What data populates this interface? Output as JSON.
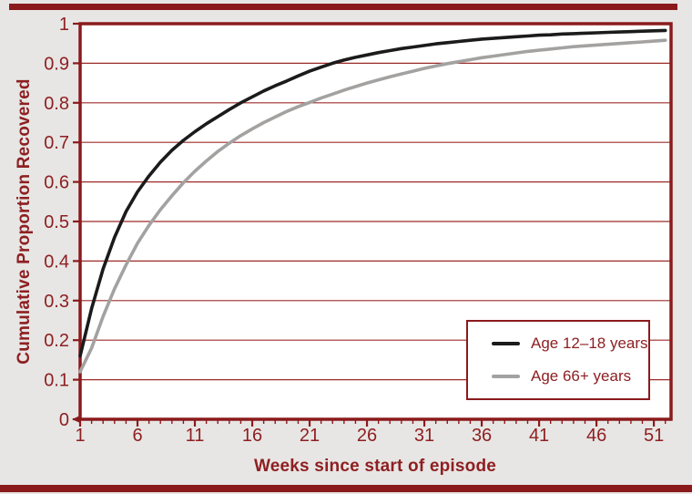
{
  "colors": {
    "maroon": "#8b1a1c",
    "text_maroon": "#8e1f22",
    "gridline": "#9c2b28",
    "page_bg": "#e7e6e4",
    "plot_bg": "#ffffff"
  },
  "chart_data": {
    "type": "line",
    "title": "",
    "xlabel": "Weeks since start of episode",
    "ylabel": "Cumulative Proportion Recovered",
    "xlim": [
      1,
      52.5
    ],
    "ylim": [
      0,
      1
    ],
    "grid": "horizontal",
    "legend_position": "lower-right",
    "x_ticks": [
      1,
      6,
      11,
      16,
      21,
      26,
      31,
      36,
      41,
      46,
      51
    ],
    "x_tick_labels": [
      "1",
      "6",
      "11",
      "16",
      "21",
      "26",
      "31",
      "36",
      "41",
      "46",
      "51"
    ],
    "x_minor_tick_step": 1,
    "y_ticks": [
      0,
      0.1,
      0.2,
      0.3,
      0.4,
      0.5,
      0.6,
      0.7,
      0.8,
      0.9,
      1
    ],
    "y_tick_labels": [
      "0",
      "0.1",
      "0.2",
      "0.3",
      "0.4",
      "0.5",
      "0.6",
      "0.7",
      "0.8",
      "0.9",
      "1"
    ],
    "x": [
      1,
      2,
      3,
      4,
      5,
      6,
      7,
      8,
      9,
      10,
      11,
      12,
      13,
      14,
      15,
      16,
      17,
      18,
      19,
      20,
      21,
      22,
      23,
      24,
      25,
      26,
      27,
      28,
      29,
      30,
      31,
      32,
      33,
      34,
      35,
      36,
      37,
      38,
      39,
      40,
      41,
      42,
      43,
      44,
      45,
      46,
      47,
      48,
      49,
      50,
      51,
      52
    ],
    "series": [
      {
        "name": "Age 12–18 years",
        "color": "#1b1b1b",
        "values": [
          0.16,
          0.28,
          0.38,
          0.46,
          0.525,
          0.575,
          0.615,
          0.65,
          0.68,
          0.705,
          0.727,
          0.747,
          0.765,
          0.783,
          0.8,
          0.815,
          0.83,
          0.843,
          0.855,
          0.868,
          0.88,
          0.89,
          0.9,
          0.908,
          0.915,
          0.921,
          0.927,
          0.932,
          0.937,
          0.941,
          0.945,
          0.949,
          0.952,
          0.955,
          0.958,
          0.961,
          0.963,
          0.965,
          0.967,
          0.969,
          0.971,
          0.972,
          0.974,
          0.975,
          0.976,
          0.977,
          0.978,
          0.979,
          0.98,
          0.981,
          0.982,
          0.983
        ]
      },
      {
        "name": "Age 66+ years",
        "color": "#a3a2a1",
        "values": [
          0.12,
          0.18,
          0.26,
          0.33,
          0.39,
          0.445,
          0.49,
          0.53,
          0.565,
          0.598,
          0.627,
          0.653,
          0.677,
          0.698,
          0.717,
          0.734,
          0.75,
          0.764,
          0.778,
          0.79,
          0.801,
          0.812,
          0.822,
          0.832,
          0.841,
          0.85,
          0.858,
          0.866,
          0.873,
          0.88,
          0.887,
          0.893,
          0.899,
          0.904,
          0.909,
          0.914,
          0.918,
          0.922,
          0.926,
          0.93,
          0.933,
          0.936,
          0.939,
          0.942,
          0.944,
          0.946,
          0.948,
          0.95,
          0.952,
          0.954,
          0.956,
          0.958
        ]
      }
    ]
  }
}
